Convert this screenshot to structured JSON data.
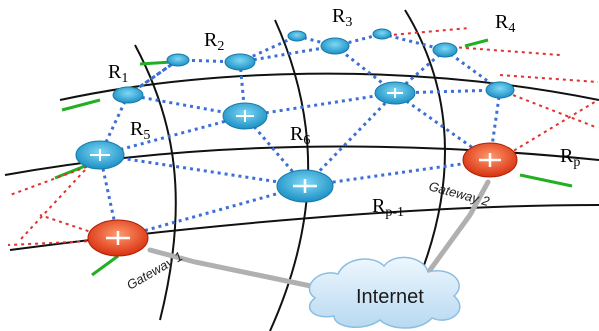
{
  "routers": {
    "r1": {
      "main": "R",
      "sub": "1"
    },
    "r2": {
      "main": "R",
      "sub": "2"
    },
    "r3": {
      "main": "R",
      "sub": "3"
    },
    "r4": {
      "main": "R",
      "sub": "4"
    },
    "r5": {
      "main": "R",
      "sub": "5"
    },
    "r6": {
      "main": "R",
      "sub": "6"
    },
    "rp": {
      "main": "R",
      "sub": "p"
    },
    "rp1": {
      "main": "R",
      "sub": "p-1"
    }
  },
  "gateways": {
    "gateway1": "Gateway 1",
    "gateway2": "Gateway 2"
  },
  "cloud_label": "Internet",
  "colors": {
    "mesh_link": "#3d6fd8",
    "gateway_link": "#e03030",
    "client_link": "#22b022",
    "router_blue": "#27a9d8",
    "router_red": "#e8451c",
    "cloud": "#cfe6f7"
  }
}
